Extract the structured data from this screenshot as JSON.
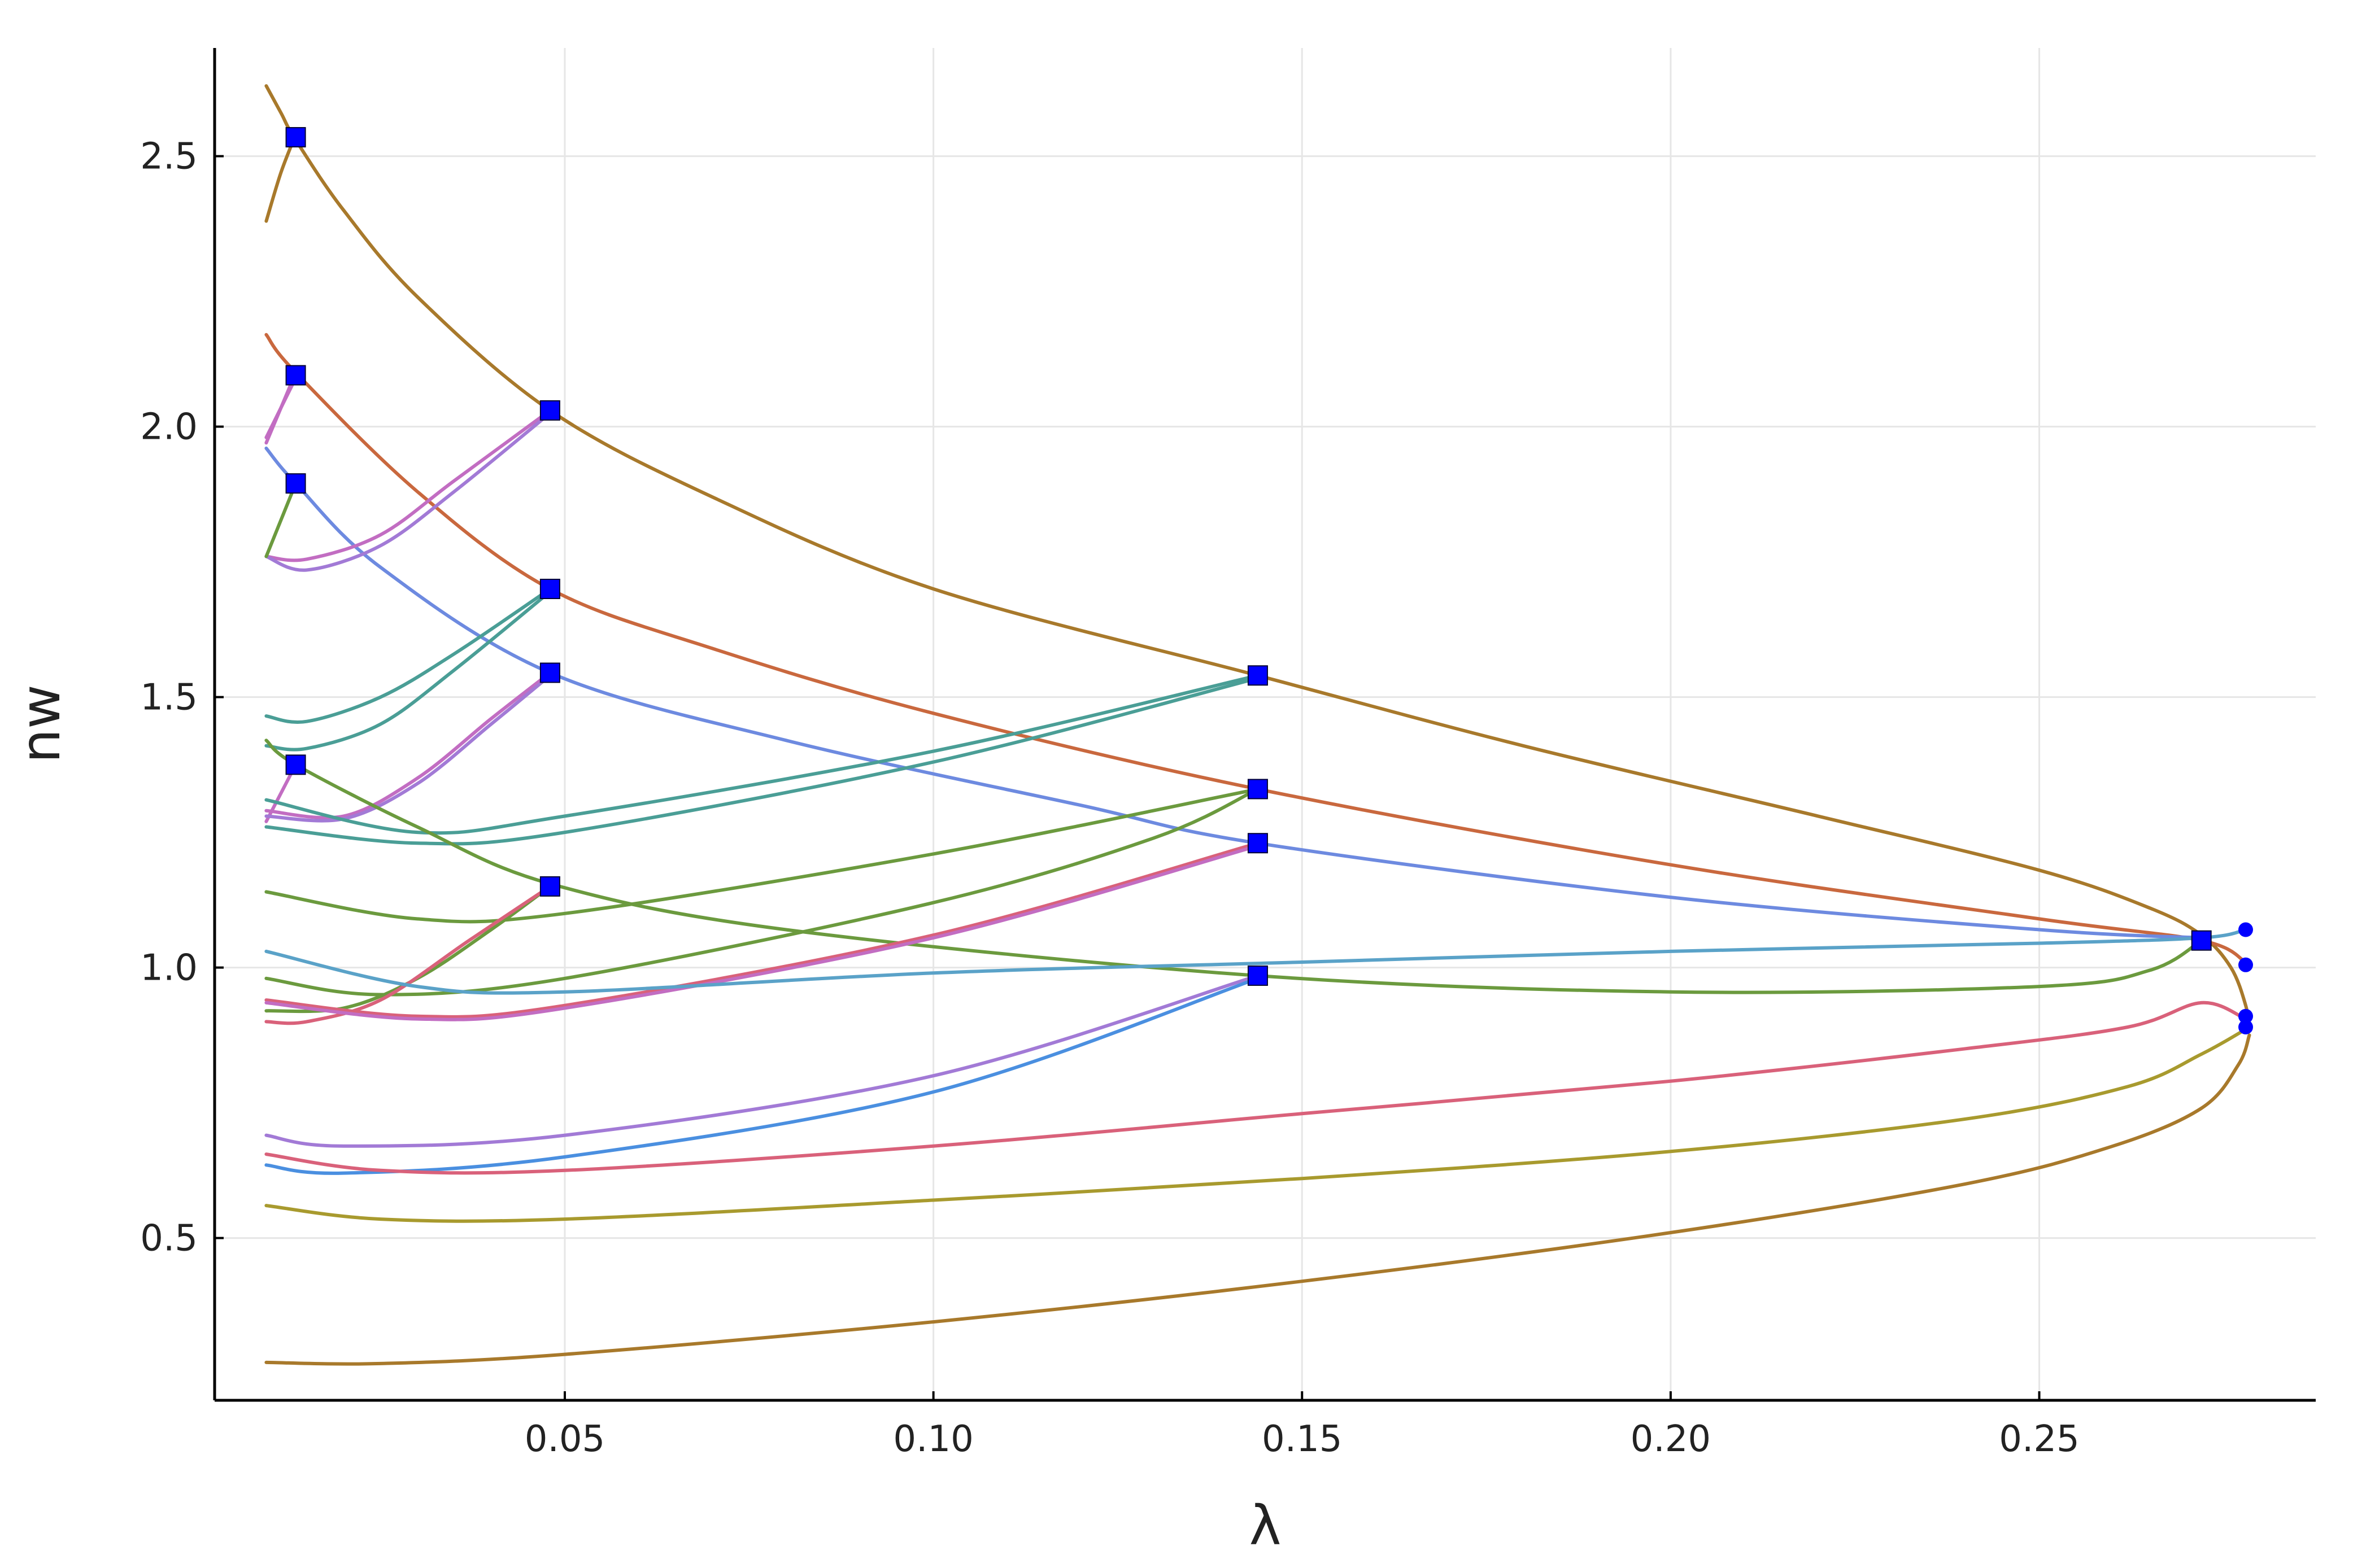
{
  "chart_data": {
    "type": "line",
    "xlabel": "λ",
    "ylabel": "nw",
    "xlim": [
      0.0025,
      0.2875
    ],
    "ylim": [
      0.2,
      2.7
    ],
    "xticks": [
      {
        "value": 0.05,
        "label": "0.05"
      },
      {
        "value": 0.1,
        "label": "0.10"
      },
      {
        "value": 0.15,
        "label": "0.15"
      },
      {
        "value": 0.2,
        "label": "0.20"
      },
      {
        "value": 0.25,
        "label": "0.25"
      }
    ],
    "yticks": [
      {
        "value": 0.5,
        "label": "0.5"
      },
      {
        "value": 1.0,
        "label": "1.0"
      },
      {
        "value": 1.5,
        "label": "1.5"
      },
      {
        "value": 2.0,
        "label": "2.0"
      },
      {
        "value": 2.5,
        "label": "2.5"
      }
    ],
    "grid": true,
    "legend": "none",
    "colors": {
      "marker": "#0000ff",
      "axis": "#000000",
      "grid": "#e6e6e6"
    },
    "series": [
      {
        "color": "#a8792b",
        "points": [
          [
            0.0095,
            2.63
          ],
          [
            0.0115,
            2.58
          ],
          [
            0.0135,
            2.53
          ],
          [
            0.02,
            2.4
          ],
          [
            0.03,
            2.24
          ],
          [
            0.048,
            2.03
          ],
          [
            0.07,
            1.87
          ],
          [
            0.1,
            1.7
          ],
          [
            0.144,
            1.54
          ],
          [
            0.18,
            1.41
          ],
          [
            0.22,
            1.28
          ],
          [
            0.25,
            1.18
          ],
          [
            0.265,
            1.11
          ],
          [
            0.272,
            1.06
          ],
          [
            0.276,
            1.0
          ],
          [
            0.278,
            0.93
          ],
          [
            0.2785,
            0.885
          ]
        ]
      },
      {
        "color": "#a8792b",
        "points": [
          [
            0.0095,
            2.38
          ],
          [
            0.0115,
            2.47
          ],
          [
            0.0135,
            2.54
          ]
        ]
      },
      {
        "color": "#a8792b",
        "points": [
          [
            0.0095,
            0.27
          ],
          [
            0.025,
            0.268
          ],
          [
            0.05,
            0.285
          ],
          [
            0.1,
            0.345
          ],
          [
            0.15,
            0.42
          ],
          [
            0.2,
            0.51
          ],
          [
            0.24,
            0.6
          ],
          [
            0.26,
            0.67
          ],
          [
            0.272,
            0.74
          ],
          [
            0.277,
            0.82
          ],
          [
            0.2785,
            0.875
          ]
        ]
      },
      {
        "color": "#c9683e",
        "points": [
          [
            0.0095,
            2.17
          ],
          [
            0.0135,
            2.1
          ],
          [
            0.03,
            1.88
          ],
          [
            0.048,
            1.7
          ],
          [
            0.07,
            1.59
          ],
          [
            0.1,
            1.47
          ],
          [
            0.144,
            1.33
          ],
          [
            0.2,
            1.19
          ],
          [
            0.25,
            1.09
          ],
          [
            0.272,
            1.05
          ],
          [
            0.278,
            1.01
          ]
        ]
      },
      {
        "color": "#6d8ae0",
        "points": [
          [
            0.0095,
            1.96
          ],
          [
            0.0135,
            1.895
          ],
          [
            0.025,
            1.74
          ],
          [
            0.048,
            1.545
          ],
          [
            0.08,
            1.42
          ],
          [
            0.12,
            1.3
          ],
          [
            0.144,
            1.23
          ],
          [
            0.2,
            1.13
          ],
          [
            0.25,
            1.07
          ],
          [
            0.272,
            1.055
          ]
        ]
      },
      {
        "color": "#c26dc2",
        "points": [
          [
            0.0095,
            1.97
          ],
          [
            0.0135,
            2.1
          ]
        ]
      },
      {
        "color": "#c26dc2",
        "points": [
          [
            0.0095,
            1.98
          ],
          [
            0.0135,
            2.09
          ]
        ]
      },
      {
        "color": "#c26dc2",
        "points": [
          [
            0.0095,
            1.76
          ],
          [
            0.015,
            1.755
          ],
          [
            0.025,
            1.8
          ],
          [
            0.035,
            1.9
          ],
          [
            0.048,
            2.03
          ]
        ]
      },
      {
        "color": "#a27ad6",
        "points": [
          [
            0.0095,
            1.76
          ],
          [
            0.015,
            1.735
          ],
          [
            0.025,
            1.78
          ],
          [
            0.035,
            1.88
          ],
          [
            0.048,
            2.025
          ]
        ]
      },
      {
        "color": "#6b9a3e",
        "points": [
          [
            0.0095,
            1.76
          ],
          [
            0.0135,
            1.895
          ]
        ]
      },
      {
        "color": "#4a9e96",
        "points": [
          [
            0.0095,
            1.465
          ],
          [
            0.015,
            1.455
          ],
          [
            0.025,
            1.5
          ],
          [
            0.035,
            1.58
          ],
          [
            0.048,
            1.7
          ]
        ]
      },
      {
        "color": "#4a9e96",
        "points": [
          [
            0.0095,
            1.41
          ],
          [
            0.015,
            1.405
          ],
          [
            0.025,
            1.45
          ],
          [
            0.035,
            1.55
          ],
          [
            0.048,
            1.695
          ]
        ]
      },
      {
        "color": "#c26dc2",
        "points": [
          [
            0.0095,
            1.27
          ],
          [
            0.0135,
            1.375
          ]
        ]
      },
      {
        "color": "#c26dc2",
        "points": [
          [
            0.0095,
            1.29
          ],
          [
            0.02,
            1.28
          ],
          [
            0.03,
            1.35
          ],
          [
            0.04,
            1.46
          ],
          [
            0.048,
            1.545
          ]
        ]
      },
      {
        "color": "#a27ad6",
        "points": [
          [
            0.0095,
            1.28
          ],
          [
            0.02,
            1.275
          ],
          [
            0.03,
            1.34
          ],
          [
            0.04,
            1.45
          ],
          [
            0.048,
            1.54
          ]
        ]
      },
      {
        "color": "#4a9e96",
        "points": [
          [
            0.0095,
            1.31
          ],
          [
            0.03,
            1.25
          ],
          [
            0.05,
            1.28
          ],
          [
            0.1,
            1.4
          ],
          [
            0.144,
            1.54
          ]
        ]
      },
      {
        "color": "#4a9e96",
        "points": [
          [
            0.0095,
            1.26
          ],
          [
            0.03,
            1.23
          ],
          [
            0.05,
            1.25
          ],
          [
            0.1,
            1.38
          ],
          [
            0.144,
            1.535
          ]
        ]
      },
      {
        "color": "#6b9a3e",
        "points": [
          [
            0.0095,
            1.42
          ],
          [
            0.0135,
            1.375
          ],
          [
            0.03,
            1.26
          ],
          [
            0.048,
            1.155
          ],
          [
            0.08,
            1.07
          ],
          [
            0.144,
            0.985
          ],
          [
            0.2,
            0.955
          ],
          [
            0.25,
            0.965
          ],
          [
            0.265,
            0.995
          ],
          [
            0.272,
            1.05
          ]
        ]
      },
      {
        "color": "#6b9a3e",
        "points": [
          [
            0.0095,
            1.14
          ],
          [
            0.03,
            1.09
          ],
          [
            0.05,
            1.1
          ],
          [
            0.1,
            1.21
          ],
          [
            0.144,
            1.33
          ]
        ]
      },
      {
        "color": "#6b9a3e",
        "points": [
          [
            0.0095,
            0.98
          ],
          [
            0.025,
            0.95
          ],
          [
            0.05,
            0.98
          ],
          [
            0.1,
            1.12
          ],
          [
            0.13,
            1.24
          ],
          [
            0.144,
            1.33
          ]
        ]
      },
      {
        "color": "#6b9a3e",
        "points": [
          [
            0.0095,
            0.92
          ],
          [
            0.02,
            0.925
          ],
          [
            0.03,
            0.98
          ],
          [
            0.04,
            1.07
          ],
          [
            0.048,
            1.15
          ]
        ]
      },
      {
        "color": "#d9617a",
        "points": [
          [
            0.0095,
            0.9
          ],
          [
            0.015,
            0.9
          ],
          [
            0.025,
            0.94
          ],
          [
            0.037,
            1.05
          ],
          [
            0.048,
            1.15
          ]
        ]
      },
      {
        "color": "#d9617a",
        "points": [
          [
            0.0095,
            0.94
          ],
          [
            0.03,
            0.91
          ],
          [
            0.05,
            0.93
          ],
          [
            0.1,
            1.06
          ],
          [
            0.144,
            1.23
          ]
        ]
      },
      {
        "color": "#c26dc2",
        "points": [
          [
            0.0095,
            0.935
          ],
          [
            0.03,
            0.905
          ],
          [
            0.05,
            0.925
          ],
          [
            0.1,
            1.055
          ],
          [
            0.144,
            1.225
          ]
        ]
      },
      {
        "color": "#5aa2c8",
        "points": [
          [
            0.0095,
            1.03
          ],
          [
            0.03,
            0.965
          ],
          [
            0.05,
            0.955
          ],
          [
            0.1,
            0.99
          ],
          [
            0.15,
            1.01
          ],
          [
            0.2,
            1.03
          ],
          [
            0.25,
            1.045
          ],
          [
            0.272,
            1.055
          ],
          [
            0.278,
            1.07
          ]
        ]
      },
      {
        "color": "#a27ad6",
        "points": [
          [
            0.0095,
            0.69
          ],
          [
            0.02,
            0.67
          ],
          [
            0.05,
            0.69
          ],
          [
            0.1,
            0.8
          ],
          [
            0.144,
            0.985
          ]
        ]
      },
      {
        "color": "#4a8fe0",
        "points": [
          [
            0.0095,
            0.635
          ],
          [
            0.02,
            0.62
          ],
          [
            0.05,
            0.65
          ],
          [
            0.1,
            0.77
          ],
          [
            0.144,
            0.98
          ]
        ]
      },
      {
        "color": "#d9617a",
        "points": [
          [
            0.0095,
            0.655
          ],
          [
            0.025,
            0.625
          ],
          [
            0.05,
            0.625
          ],
          [
            0.1,
            0.67
          ],
          [
            0.15,
            0.73
          ],
          [
            0.2,
            0.79
          ],
          [
            0.24,
            0.85
          ],
          [
            0.262,
            0.89
          ],
          [
            0.272,
            0.935
          ],
          [
            0.278,
            0.905
          ]
        ]
      },
      {
        "color": "#a89a2e",
        "points": [
          [
            0.0095,
            0.56
          ],
          [
            0.025,
            0.535
          ],
          [
            0.05,
            0.535
          ],
          [
            0.1,
            0.57
          ],
          [
            0.15,
            0.61
          ],
          [
            0.2,
            0.66
          ],
          [
            0.24,
            0.72
          ],
          [
            0.262,
            0.78
          ],
          [
            0.272,
            0.84
          ],
          [
            0.2785,
            0.89
          ]
        ]
      }
    ],
    "square_markers": [
      [
        0.0135,
        2.535
      ],
      [
        0.0135,
        2.095
      ],
      [
        0.0135,
        1.895
      ],
      [
        0.0135,
        1.375
      ],
      [
        0.048,
        2.03
      ],
      [
        0.048,
        1.7
      ],
      [
        0.048,
        1.545
      ],
      [
        0.048,
        1.15
      ],
      [
        0.144,
        1.54
      ],
      [
        0.144,
        1.33
      ],
      [
        0.144,
        1.23
      ],
      [
        0.144,
        0.985
      ],
      [
        0.272,
        1.05
      ]
    ],
    "circle_markers": [
      [
        0.278,
        1.07
      ],
      [
        0.278,
        1.005
      ],
      [
        0.278,
        0.91
      ],
      [
        0.278,
        0.89
      ]
    ]
  }
}
